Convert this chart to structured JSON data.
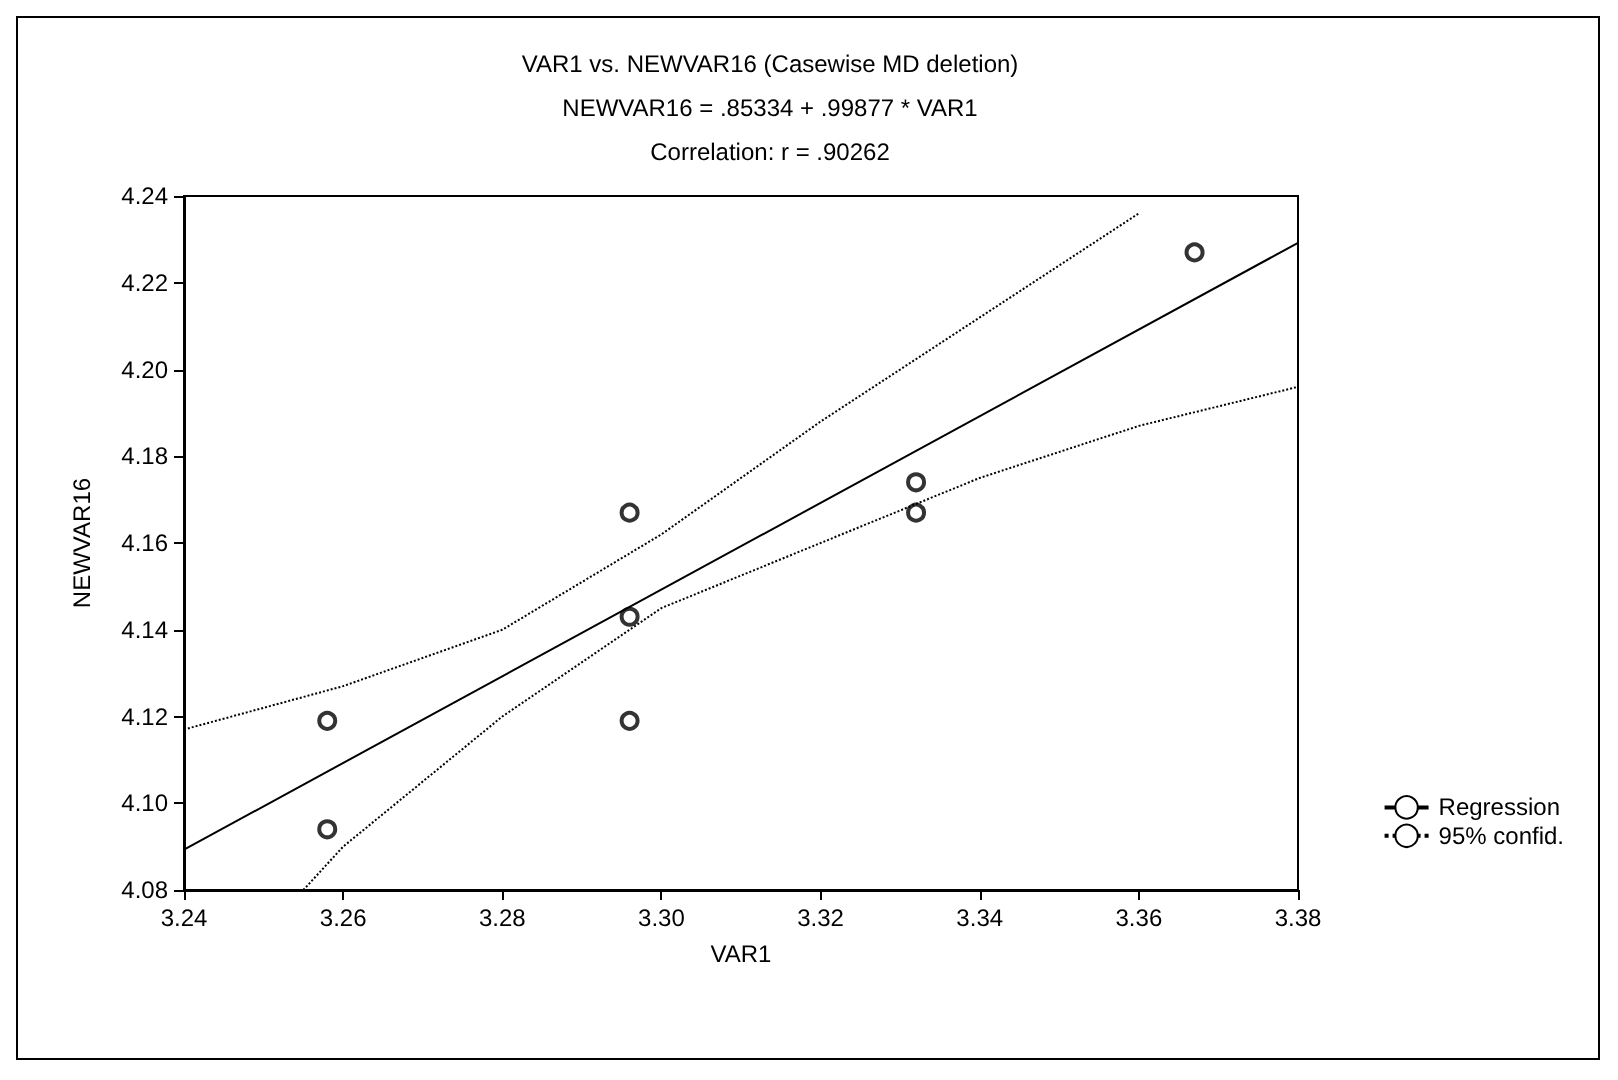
{
  "chart_data": {
    "type": "scatter",
    "title": "VAR1 vs. NEWVAR16 (Casewise MD deletion)",
    "subtitle": "NEWVAR16 = .85334 + .99877 * VAR1",
    "annotations": [
      "Correlation: r = .90262"
    ],
    "xlabel": "VAR1",
    "ylabel": "NEWVAR16",
    "series": [
      {
        "type": "scatter",
        "color": "#000000",
        "x": [
          3.258,
          3.258,
          3.296,
          3.296,
          3.296,
          3.332,
          3.332,
          3.367
        ],
        "values": [
          4.119,
          4.094,
          4.167,
          4.143,
          4.119,
          4.174,
          4.167,
          4.227
        ],
        "marker": "circle"
      },
      {
        "type": "line",
        "name": "Regression",
        "color": "#000000",
        "x": [
          3.24,
          3.38
        ],
        "values": [
          4.0893,
          4.2292
        ],
        "line_style": "solid",
        "marker": "none"
      },
      {
        "type": "line",
        "name": "95% confid.",
        "color": "#000000",
        "x": [
          3.24,
          3.26,
          3.28,
          3.3,
          3.32,
          3.34,
          3.36
        ],
        "values": [
          4.117,
          4.127,
          4.14,
          4.162,
          4.188,
          4.212,
          4.236
        ],
        "line_style": "dotted",
        "marker": "none"
      },
      {
        "type": "line",
        "color": "#000000",
        "x": [
          3.255,
          3.26,
          3.28,
          3.3,
          3.32,
          3.34,
          3.36,
          3.38
        ],
        "values": [
          4.08,
          4.09,
          4.12,
          4.145,
          4.16,
          4.175,
          4.187,
          4.196
        ],
        "line_style": "dotted",
        "marker": "none"
      }
    ],
    "xlim": [
      3.24,
      3.38
    ],
    "xticks": [
      3.24,
      3.26,
      3.28,
      {
        "value": 3.3,
        "label": "3.30"
      },
      3.32,
      3.34,
      3.36,
      3.38
    ],
    "ylim": [
      4.08,
      4.24
    ],
    "yticks": [
      4.08,
      {
        "value": 4.1,
        "label": "4.10"
      },
      4.12,
      4.14,
      4.16,
      4.18,
      {
        "value": 4.2,
        "label": "4.20"
      },
      4.22,
      4.24
    ],
    "grid": false,
    "legend": "bottom right"
  }
}
